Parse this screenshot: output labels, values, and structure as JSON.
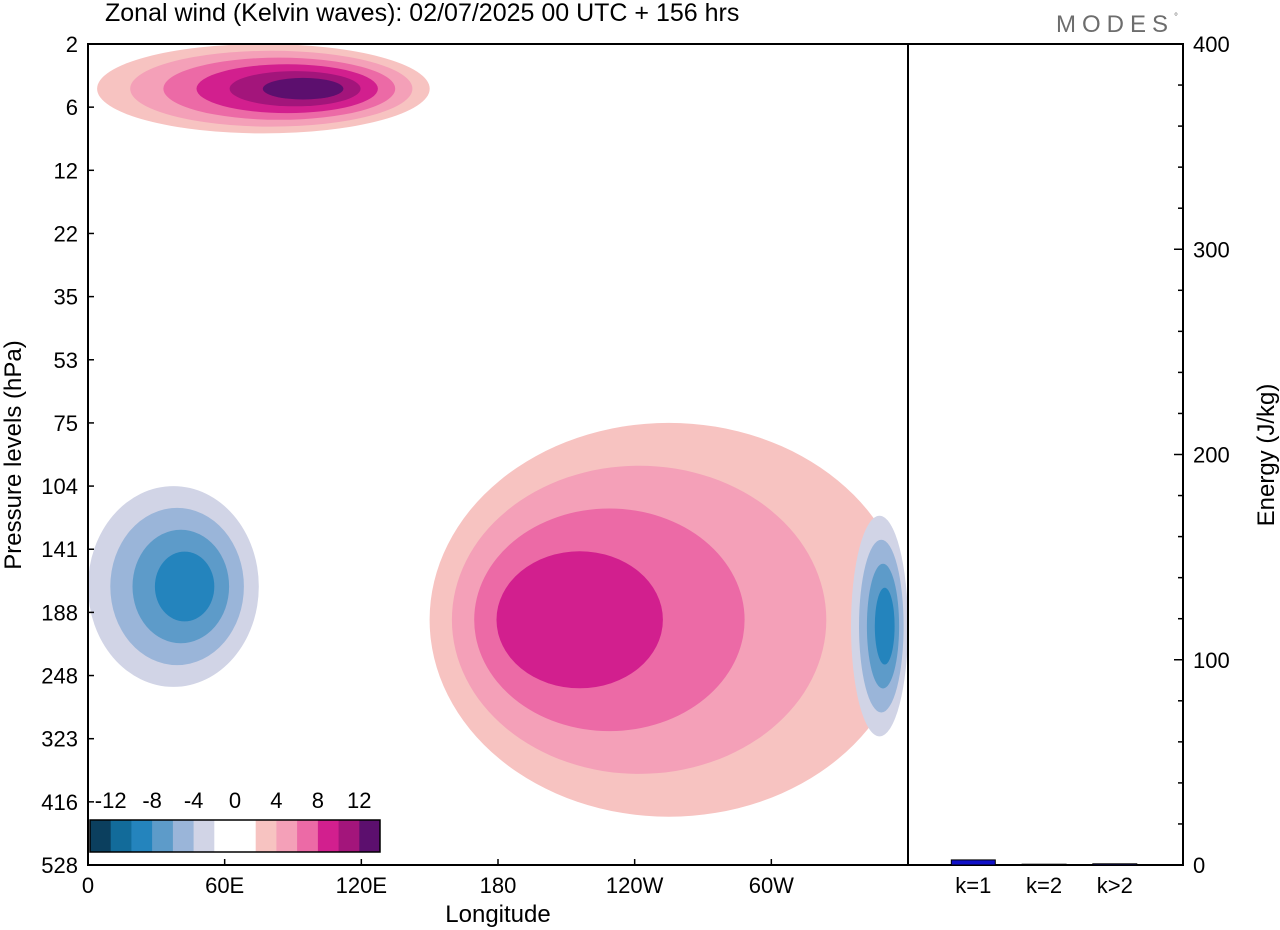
{
  "title": "Zonal wind (Kelvin waves):  02/07/2025  00 UTC  + 156 hrs",
  "brand": "MODES",
  "brand_mark": "°",
  "chart_data": [
    {
      "type": "heatmap",
      "field": "zonal wind (Kelvin waves)",
      "xlabel": "Longitude",
      "ylabel": "Pressure levels (hPa)",
      "x_ticks": [
        "0",
        "60E",
        "120E",
        "180",
        "120W",
        "60W"
      ],
      "x_tick_values": [
        0,
        60,
        120,
        180,
        240,
        300
      ],
      "xlim": [
        0,
        360
      ],
      "y_ticks": [
        "2",
        "6",
        "12",
        "22",
        "35",
        "53",
        "75",
        "104",
        "141",
        "188",
        "248",
        "323",
        "416",
        "528"
      ],
      "colorbar": {
        "labels": [
          "-12",
          "-8",
          "-4",
          "0",
          "4",
          "8",
          "12"
        ],
        "colors": [
          "#0b3f5e",
          "#126b9a",
          "#2484bd",
          "#5d9bc9",
          "#9ab5d9",
          "#d1d4e6",
          "#ffffff",
          "#ffffff",
          "#f7c3c1",
          "#f4a0b8",
          "#ec6aa6",
          "#d21f8e",
          "#a3157b",
          "#5c0f6e"
        ]
      },
      "features": [
        {
          "sign": "positive",
          "max_level": 12,
          "lon": [
            4,
            150
          ],
          "hPa": [
            2,
            8
          ],
          "peak_lon": 100
        },
        {
          "sign": "negative",
          "max_level": -8,
          "lon": [
            0,
            75
          ],
          "hPa": [
            104,
            260
          ],
          "peak_lon": 45
        },
        {
          "sign": "positive",
          "max_level": 8,
          "lon": [
            150,
            360
          ],
          "hPa": [
            75,
            440
          ],
          "peak_lon": 195
        },
        {
          "sign": "negative",
          "max_level": -8,
          "lon": [
            335,
            360
          ],
          "hPa": [
            120,
            320
          ],
          "peak_lon": 351
        }
      ]
    },
    {
      "type": "bar",
      "categories": [
        "k=1",
        "k=2",
        "k>2"
      ],
      "values": [
        2.5,
        0.4,
        0.6
      ],
      "ylabel": "Energy (J/kg)",
      "ylim": [
        0,
        400
      ],
      "y_ticks": [
        "0",
        "100",
        "200",
        "300",
        "400"
      ],
      "bar_color": "#1010c8"
    }
  ]
}
